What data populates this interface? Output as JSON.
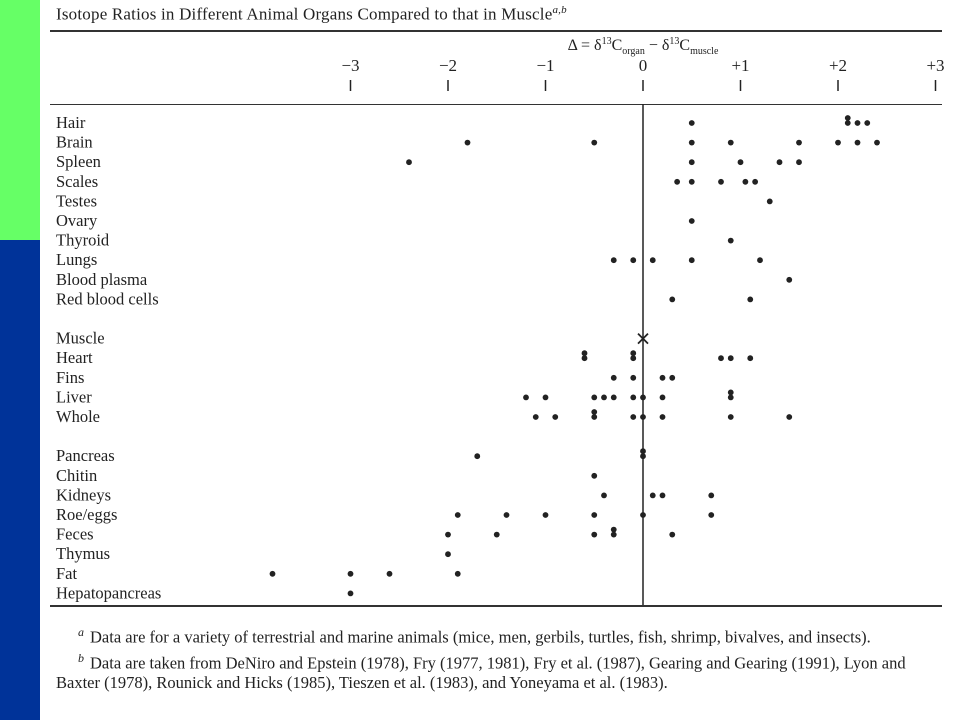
{
  "chart_data": {
    "type": "scatter",
    "title": "Isotope Ratios in Different Animal Organs Compared to that in Muscle",
    "title_marks": "a,b",
    "axis_title": {
      "prefix": "Δ = δ",
      "iso1": "13",
      "c1": "C",
      "sub1": "organ",
      "minus": " − δ",
      "iso2": "13",
      "c2": "C",
      "sub2": "muscle"
    },
    "xlim": [
      -3,
      3
    ],
    "ticks": [
      {
        "value": -3,
        "label": "−3"
      },
      {
        "value": -2,
        "label": "−2"
      },
      {
        "value": -1,
        "label": "−1"
      },
      {
        "value": 0,
        "label": "0"
      },
      {
        "value": 1,
        "label": "+1"
      },
      {
        "value": 2,
        "label": "+2"
      },
      {
        "value": 3,
        "label": "+3"
      }
    ],
    "reference_line": 0,
    "categories": [
      {
        "name": "Hair",
        "points": [
          0.5,
          2.1,
          2.1,
          2.2,
          2.3
        ]
      },
      {
        "name": "Brain",
        "points": [
          -1.8,
          -0.5,
          0.5,
          0.9,
          1.6,
          2.0,
          2.2,
          2.4
        ]
      },
      {
        "name": "Spleen",
        "points": [
          -2.4,
          0.5,
          1.0,
          1.4,
          1.6
        ]
      },
      {
        "name": "Scales",
        "points": [
          0.35,
          0.5,
          0.8,
          1.05,
          1.15
        ]
      },
      {
        "name": "Testes",
        "points": [
          1.3
        ]
      },
      {
        "name": "Ovary",
        "points": [
          0.5
        ]
      },
      {
        "name": "Thyroid",
        "points": [
          0.9
        ]
      },
      {
        "name": "Lungs",
        "points": [
          -0.3,
          -0.1,
          0.1,
          0.5,
          1.2
        ]
      },
      {
        "name": "Blood plasma",
        "points": [
          1.5
        ]
      },
      {
        "name": "Red blood cells",
        "points": [
          0.3,
          1.1
        ]
      },
      {
        "name": "Muscle",
        "points": [],
        "reference_marker": 0
      },
      {
        "name": "Heart",
        "points": [
          -0.6,
          -0.6,
          -0.1,
          -0.1,
          0.8,
          0.9,
          1.1
        ]
      },
      {
        "name": "Fins",
        "points": [
          -0.3,
          -0.1,
          0.2,
          0.3
        ]
      },
      {
        "name": "Liver",
        "points": [
          -1.2,
          -1.0,
          -0.5,
          -0.4,
          -0.3,
          -0.1,
          0.0,
          0.2,
          0.9,
          0.9
        ]
      },
      {
        "name": "Whole",
        "points": [
          -1.1,
          -0.9,
          -0.5,
          -0.5,
          -0.1,
          0.0,
          0.2,
          0.9,
          1.5
        ]
      },
      {
        "name": "Pancreas",
        "points": [
          -1.7,
          0.0,
          0.0
        ]
      },
      {
        "name": "Chitin",
        "points": [
          -0.5
        ]
      },
      {
        "name": "Kidneys",
        "points": [
          -0.4,
          0.1,
          0.2,
          0.7
        ]
      },
      {
        "name": "Roe/eggs",
        "points": [
          -1.9,
          -1.4,
          -1.0,
          -0.5,
          0.0,
          0.7
        ]
      },
      {
        "name": "Feces",
        "points": [
          -2.0,
          -1.5,
          -0.5,
          -0.3,
          -0.3,
          0.3
        ]
      },
      {
        "name": "Thymus",
        "points": [
          -2.0
        ]
      },
      {
        "name": "Fat",
        "points": [
          -3.8,
          -3.0,
          -2.6,
          -1.9
        ]
      },
      {
        "name": "Hepatopancreas",
        "points": [
          -3.0
        ]
      }
    ]
  },
  "footnotes": {
    "a_mark": "a",
    "a_text": "Data are for a variety of terrestrial and marine animals (mice, men, gerbils, turtles, fish, shrimp, bivalves, and insects).",
    "b_mark": "b",
    "b_text": "Data are taken from DeNiro and Epstein (1978), Fry (1977, 1981), Fry et al. (1987), Gearing and Gearing (1991), Lyon and Baxter (1978), Rounick and Hicks (1985), Tieszen et al. (1983), and Yoneyama et al. (1983)."
  },
  "colors": {
    "side_top": "#66ff66",
    "side_bottom": "#003399",
    "ink": "#222222"
  }
}
